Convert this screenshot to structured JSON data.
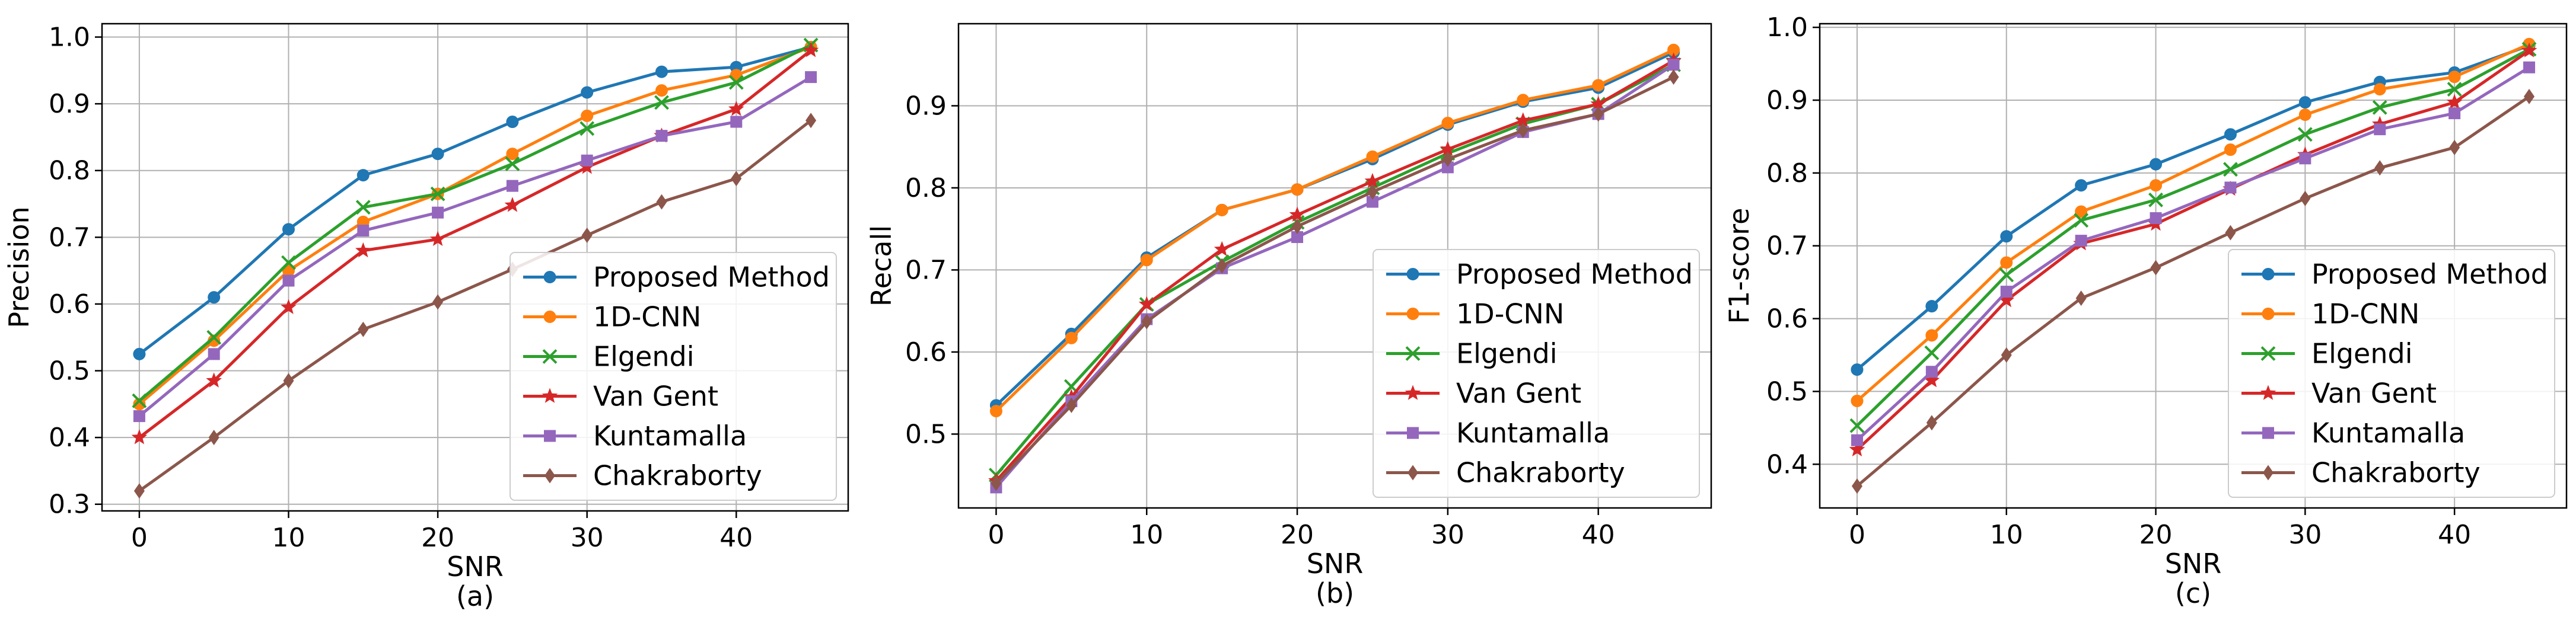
{
  "chart_data": [
    {
      "type": "line",
      "caption": "(a)",
      "xlabel": "SNR",
      "ylabel": "Precision",
      "x": [
        0,
        5,
        10,
        15,
        20,
        25,
        30,
        35,
        40,
        45
      ],
      "xlim": [
        -2.5,
        47.5
      ],
      "ylim": [
        0.29,
        1.02
      ],
      "xticks": [
        0,
        10,
        20,
        30,
        40
      ],
      "yticks": [
        0.3,
        0.4,
        0.5,
        0.6,
        0.7,
        0.8,
        0.9,
        1.0
      ],
      "ytick_labels": [
        "0.3",
        "0.4",
        "0.5",
        "0.6",
        "0.7",
        "0.8",
        "0.9",
        "1.0"
      ],
      "grid": true,
      "legend_position": "lower-right",
      "series": [
        {
          "name": "Proposed Method",
          "color": "#1f77b4",
          "marker": "circle",
          "values": [
            0.525,
            0.61,
            0.712,
            0.793,
            0.825,
            0.873,
            0.917,
            0.948,
            0.955,
            0.985
          ]
        },
        {
          "name": "1D-CNN",
          "color": "#ff7f0e",
          "marker": "circle",
          "values": [
            0.45,
            0.545,
            0.65,
            0.723,
            0.765,
            0.825,
            0.882,
            0.92,
            0.943,
            0.985
          ]
        },
        {
          "name": "Elgendi",
          "color": "#2ca02c",
          "marker": "x",
          "values": [
            0.455,
            0.55,
            0.662,
            0.745,
            0.765,
            0.81,
            0.863,
            0.902,
            0.932,
            0.988
          ]
        },
        {
          "name": "Van Gent",
          "color": "#d62728",
          "marker": "star",
          "values": [
            0.4,
            0.485,
            0.595,
            0.68,
            0.697,
            0.748,
            0.805,
            0.852,
            0.892,
            0.98
          ]
        },
        {
          "name": "Kuntamalla",
          "color": "#9467bd",
          "marker": "square",
          "values": [
            0.432,
            0.525,
            0.635,
            0.71,
            0.737,
            0.777,
            0.815,
            0.852,
            0.873,
            0.94
          ]
        },
        {
          "name": "Chakraborty",
          "color": "#8c564b",
          "marker": "diamond",
          "values": [
            0.32,
            0.4,
            0.485,
            0.562,
            0.603,
            0.652,
            0.703,
            0.753,
            0.788,
            0.875
          ]
        }
      ]
    },
    {
      "type": "line",
      "caption": "(b)",
      "xlabel": "SNR",
      "ylabel": "Recall",
      "x": [
        0,
        5,
        10,
        15,
        20,
        25,
        30,
        35,
        40,
        45
      ],
      "xlim": [
        -2.5,
        47.5
      ],
      "ylim": [
        0.41,
        1.0
      ],
      "xticks": [
        0,
        10,
        20,
        30,
        40
      ],
      "yticks": [
        0.5,
        0.6,
        0.7,
        0.8,
        0.9
      ],
      "ytick_labels": [
        "0.5",
        "0.6",
        "0.7",
        "0.8",
        "0.9"
      ],
      "grid": true,
      "legend_position": "lower-right",
      "series": [
        {
          "name": "Proposed Method",
          "color": "#1f77b4",
          "marker": "circle",
          "values": [
            0.535,
            0.622,
            0.715,
            0.773,
            0.798,
            0.835,
            0.877,
            0.905,
            0.922,
            0.965
          ]
        },
        {
          "name": "1D-CNN",
          "color": "#ff7f0e",
          "marker": "circle",
          "values": [
            0.528,
            0.617,
            0.712,
            0.773,
            0.798,
            0.838,
            0.879,
            0.907,
            0.925,
            0.968
          ]
        },
        {
          "name": "Elgendi",
          "color": "#2ca02c",
          "marker": "x",
          "values": [
            0.45,
            0.558,
            0.658,
            0.71,
            0.758,
            0.8,
            0.842,
            0.878,
            0.902,
            0.95
          ]
        },
        {
          "name": "Van Gent",
          "color": "#d62728",
          "marker": "star",
          "values": [
            0.443,
            0.545,
            0.658,
            0.725,
            0.767,
            0.808,
            0.847,
            0.882,
            0.902,
            0.955
          ]
        },
        {
          "name": "Kuntamalla",
          "color": "#9467bd",
          "marker": "square",
          "values": [
            0.435,
            0.54,
            0.64,
            0.702,
            0.74,
            0.783,
            0.825,
            0.868,
            0.89,
            0.95
          ]
        },
        {
          "name": "Chakraborty",
          "color": "#8c564b",
          "marker": "diamond",
          "values": [
            0.44,
            0.535,
            0.637,
            0.705,
            0.753,
            0.795,
            0.835,
            0.87,
            0.89,
            0.935
          ]
        }
      ]
    },
    {
      "type": "line",
      "caption": "(c)",
      "xlabel": "SNR",
      "ylabel": "F1-score",
      "x": [
        0,
        5,
        10,
        15,
        20,
        25,
        30,
        35,
        40,
        45
      ],
      "xlim": [
        -2.5,
        47.5
      ],
      "ylim": [
        0.34,
        1.005
      ],
      "xticks": [
        0,
        10,
        20,
        30,
        40
      ],
      "yticks": [
        0.4,
        0.5,
        0.6,
        0.7,
        0.8,
        0.9,
        1.0
      ],
      "ytick_labels": [
        "0.4",
        "0.5",
        "0.6",
        "0.7",
        "0.8",
        "0.9",
        "1.0"
      ],
      "grid": true,
      "legend_position": "lower-right",
      "series": [
        {
          "name": "Proposed Method",
          "color": "#1f77b4",
          "marker": "circle",
          "values": [
            0.53,
            0.617,
            0.713,
            0.783,
            0.812,
            0.853,
            0.897,
            0.925,
            0.938,
            0.975
          ]
        },
        {
          "name": "1D-CNN",
          "color": "#ff7f0e",
          "marker": "circle",
          "values": [
            0.487,
            0.577,
            0.677,
            0.747,
            0.783,
            0.832,
            0.88,
            0.915,
            0.932,
            0.977
          ]
        },
        {
          "name": "Elgendi",
          "color": "#2ca02c",
          "marker": "x",
          "values": [
            0.453,
            0.553,
            0.66,
            0.735,
            0.763,
            0.805,
            0.853,
            0.89,
            0.915,
            0.97
          ]
        },
        {
          "name": "Van Gent",
          "color": "#d62728",
          "marker": "star",
          "values": [
            0.42,
            0.515,
            0.625,
            0.703,
            0.73,
            0.778,
            0.825,
            0.867,
            0.897,
            0.968
          ]
        },
        {
          "name": "Kuntamalla",
          "color": "#9467bd",
          "marker": "square",
          "values": [
            0.433,
            0.527,
            0.637,
            0.707,
            0.738,
            0.78,
            0.82,
            0.86,
            0.882,
            0.945
          ]
        },
        {
          "name": "Chakraborty",
          "color": "#8c564b",
          "marker": "diamond",
          "values": [
            0.37,
            0.457,
            0.55,
            0.628,
            0.67,
            0.718,
            0.765,
            0.807,
            0.835,
            0.905
          ]
        }
      ]
    }
  ]
}
